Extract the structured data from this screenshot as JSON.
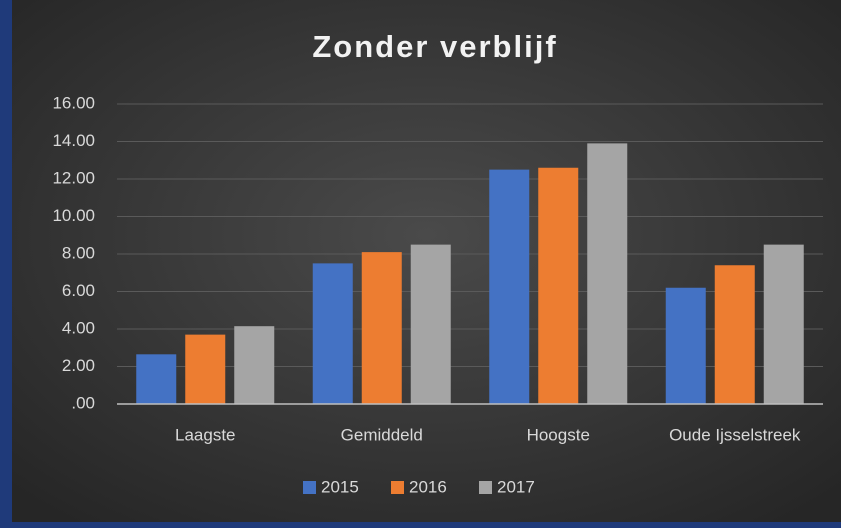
{
  "chart_data": {
    "type": "bar",
    "title": "Zonder verblijf",
    "categories": [
      "Laagste",
      "Gemiddeld",
      "Hoogste",
      "Oude Ijsselstreek"
    ],
    "series": [
      {
        "name": "2015",
        "color": "#4472c4",
        "values": [
          2.65,
          7.5,
          12.5,
          6.2
        ]
      },
      {
        "name": "2016",
        "color": "#ed7d31",
        "values": [
          3.7,
          8.1,
          12.6,
          7.4
        ]
      },
      {
        "name": "2017",
        "color": "#a5a5a5",
        "values": [
          4.15,
          8.5,
          13.9,
          8.5
        ]
      }
    ],
    "ylim": [
      0,
      16
    ],
    "yticks": [
      {
        "value": 0,
        "label": ".00"
      },
      {
        "value": 2,
        "label": "2.00"
      },
      {
        "value": 4,
        "label": "4.00"
      },
      {
        "value": 6,
        "label": "6.00"
      },
      {
        "value": 8,
        "label": "8.00"
      },
      {
        "value": 10,
        "label": "10.00"
      },
      {
        "value": 12,
        "label": "12.00"
      },
      {
        "value": 14,
        "label": "14.00"
      },
      {
        "value": 16,
        "label": "16.00"
      }
    ],
    "grid": true,
    "legend": "bottom"
  }
}
